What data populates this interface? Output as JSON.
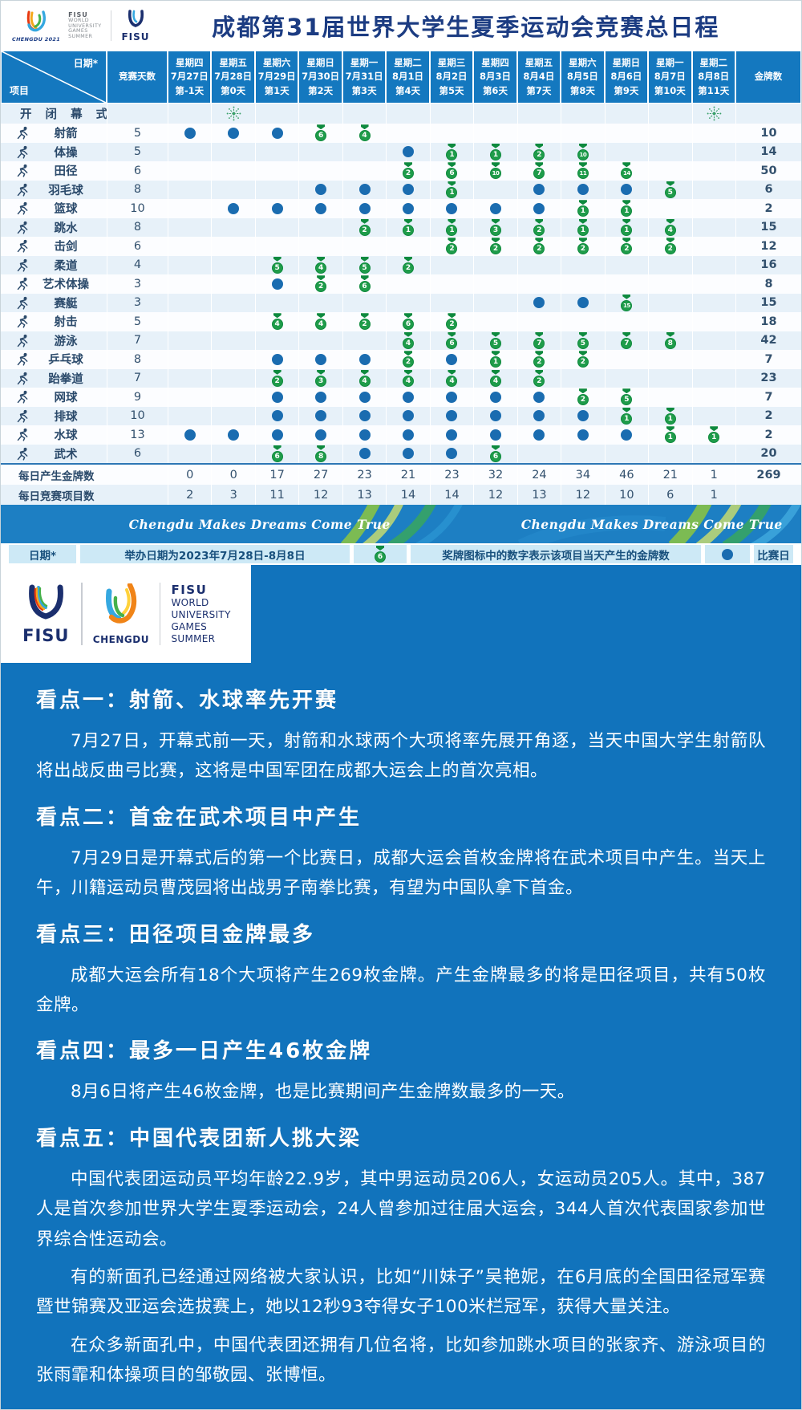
{
  "header": {
    "title": "成都第31届世界大学生夏季运动会竞赛总日程",
    "logo_chengdu2021": "CHENGDU 2021",
    "fisu_words": [
      "FISU",
      "WORLD",
      "UNIVERSITY",
      "GAMES",
      "SUMMER"
    ],
    "logo_fisu": "FISU"
  },
  "table": {
    "corner": {
      "top": "日期*",
      "bottom": "项目"
    },
    "days_label": "竞赛天数",
    "gold_label": "金牌数",
    "columns": [
      {
        "weekday": "星期四",
        "date": "7月27日",
        "day": "第-1天"
      },
      {
        "weekday": "星期五",
        "date": "7月28日",
        "day": "第0天"
      },
      {
        "weekday": "星期六",
        "date": "7月29日",
        "day": "第1天"
      },
      {
        "weekday": "星期日",
        "date": "7月30日",
        "day": "第2天"
      },
      {
        "weekday": "星期一",
        "date": "7月31日",
        "day": "第3天"
      },
      {
        "weekday": "星期二",
        "date": "8月1日",
        "day": "第4天"
      },
      {
        "weekday": "星期三",
        "date": "8月2日",
        "day": "第5天"
      },
      {
        "weekday": "星期四",
        "date": "8月3日",
        "day": "第6天"
      },
      {
        "weekday": "星期五",
        "date": "8月4日",
        "day": "第7天"
      },
      {
        "weekday": "星期六",
        "date": "8月5日",
        "day": "第8天"
      },
      {
        "weekday": "星期日",
        "date": "8月6日",
        "day": "第9天"
      },
      {
        "weekday": "星期一",
        "date": "8月7日",
        "day": "第10天"
      },
      {
        "weekday": "星期二",
        "date": "8月8日",
        "day": "第11天"
      }
    ],
    "ceremony": {
      "name": "开闭幕式",
      "fireworks_cols": [
        1,
        12
      ]
    },
    "sports": [
      {
        "key": "archery",
        "name": "射箭",
        "days": "5",
        "gold": "10",
        "cells": [
          "dot",
          "dot",
          "dot",
          "6",
          "4",
          "",
          "",
          "",
          "",
          "",
          "",
          "",
          ""
        ]
      },
      {
        "key": "gymnastics",
        "name": "体操",
        "days": "5",
        "gold": "14",
        "cells": [
          "",
          "",
          "",
          "",
          "",
          "dot",
          "1",
          "1",
          "2",
          "10",
          "",
          "",
          ""
        ]
      },
      {
        "key": "athletics",
        "name": "田径",
        "days": "6",
        "gold": "50",
        "cells": [
          "",
          "",
          "",
          "",
          "",
          "2",
          "6",
          "10",
          "7",
          "11",
          "14",
          "",
          ""
        ]
      },
      {
        "key": "badminton",
        "name": "羽毛球",
        "days": "8",
        "gold": "6",
        "cells": [
          "",
          "",
          "",
          "dot",
          "dot",
          "dot",
          "1",
          "",
          "dot",
          "dot",
          "dot",
          "5",
          ""
        ]
      },
      {
        "key": "basketball",
        "name": "篮球",
        "days": "10",
        "gold": "2",
        "cells": [
          "",
          "dot",
          "dot",
          "dot",
          "dot",
          "dot",
          "dot",
          "dot",
          "dot",
          "1",
          "1",
          "",
          ""
        ]
      },
      {
        "key": "diving",
        "name": "跳水",
        "days": "8",
        "gold": "15",
        "cells": [
          "",
          "",
          "",
          "",
          "2",
          "1",
          "1",
          "3",
          "2",
          "1",
          "1",
          "4",
          ""
        ]
      },
      {
        "key": "fencing",
        "name": "击剑",
        "days": "6",
        "gold": "12",
        "cells": [
          "",
          "",
          "",
          "",
          "",
          "",
          "2",
          "2",
          "2",
          "2",
          "2",
          "2",
          ""
        ]
      },
      {
        "key": "judo",
        "name": "柔道",
        "days": "4",
        "gold": "16",
        "cells": [
          "",
          "",
          "5",
          "4",
          "5",
          "2",
          "",
          "",
          "",
          "",
          "",
          "",
          ""
        ]
      },
      {
        "key": "rhythmic-gymnastics",
        "name": "艺术体操",
        "days": "3",
        "gold": "8",
        "cells": [
          "",
          "",
          "dot",
          "2",
          "6",
          "",
          "",
          "",
          "",
          "",
          "",
          "",
          ""
        ]
      },
      {
        "key": "rowing",
        "name": "赛艇",
        "days": "3",
        "gold": "15",
        "cells": [
          "",
          "",
          "",
          "",
          "",
          "",
          "",
          "",
          "dot",
          "dot",
          "15",
          "",
          ""
        ]
      },
      {
        "key": "shooting",
        "name": "射击",
        "days": "5",
        "gold": "18",
        "cells": [
          "",
          "",
          "4",
          "4",
          "2",
          "6",
          "2",
          "",
          "",
          "",
          "",
          "",
          ""
        ]
      },
      {
        "key": "swimming",
        "name": "游泳",
        "days": "7",
        "gold": "42",
        "cells": [
          "",
          "",
          "",
          "",
          "",
          "4",
          "6",
          "5",
          "7",
          "5",
          "7",
          "8",
          ""
        ]
      },
      {
        "key": "table-tennis",
        "name": "乒乓球",
        "days": "8",
        "gold": "7",
        "cells": [
          "",
          "",
          "dot",
          "dot",
          "dot",
          "2",
          "dot",
          "1",
          "2",
          "2",
          "",
          "",
          ""
        ]
      },
      {
        "key": "taekwondo",
        "name": "跆拳道",
        "days": "7",
        "gold": "23",
        "cells": [
          "",
          "",
          "2",
          "3",
          "4",
          "4",
          "4",
          "4",
          "2",
          "",
          "",
          "",
          ""
        ]
      },
      {
        "key": "tennis",
        "name": "网球",
        "days": "9",
        "gold": "7",
        "cells": [
          "",
          "",
          "dot",
          "dot",
          "dot",
          "dot",
          "dot",
          "dot",
          "dot",
          "2",
          "5",
          "",
          ""
        ]
      },
      {
        "key": "volleyball",
        "name": "排球",
        "days": "10",
        "gold": "2",
        "cells": [
          "",
          "",
          "dot",
          "dot",
          "dot",
          "dot",
          "dot",
          "dot",
          "dot",
          "dot",
          "1",
          "1",
          ""
        ]
      },
      {
        "key": "water-polo",
        "name": "水球",
        "days": "13",
        "gold": "2",
        "cells": [
          "dot",
          "dot",
          "dot",
          "dot",
          "dot",
          "dot",
          "dot",
          "dot",
          "dot",
          "dot",
          "dot",
          "1",
          "1"
        ]
      },
      {
        "key": "wushu",
        "name": "武术",
        "days": "6",
        "gold": "20",
        "cells": [
          "",
          "",
          "6",
          "8",
          "dot",
          "dot",
          "dot",
          "6",
          "",
          "",
          "",
          "",
          ""
        ]
      }
    ],
    "totals": [
      {
        "label": "每日产生金牌数",
        "values": [
          "0",
          "0",
          "17",
          "27",
          "23",
          "21",
          "23",
          "32",
          "24",
          "34",
          "46",
          "21",
          "1"
        ],
        "total": "269"
      },
      {
        "label": "每日竞赛项目数",
        "values": [
          "2",
          "3",
          "11",
          "12",
          "13",
          "14",
          "14",
          "12",
          "13",
          "12",
          "10",
          "6",
          "1"
        ],
        "total": ""
      }
    ]
  },
  "banner": {
    "slogan": "Chengdu Makes Dreams Come True"
  },
  "legend": {
    "date_label": "日期*",
    "date_note": "举办日期为2023年7月28日-8月8日",
    "medal_example": "6",
    "medal_note": "奖牌图标中的数字表示该项目当天产生的金牌数",
    "day_note": "比赛日"
  },
  "logos": {
    "fisu_label": "FISU",
    "chengdu_label": "CHENGDU",
    "words": [
      "FISU",
      "WORLD",
      "UNIVERSITY",
      "GAMES",
      "SUMMER"
    ]
  },
  "highlights": [
    {
      "heading": "看点一：射箭、水球率先开赛",
      "paragraphs": [
        "7月27日，开幕式前一天，射箭和水球两个大项将率先展开角逐，当天中国大学生射箭队将出战反曲弓比赛，这将是中国军团在成都大运会上的首次亮相。"
      ]
    },
    {
      "heading": "看点二：首金在武术项目中产生",
      "paragraphs": [
        "7月29日是开幕式后的第一个比赛日，成都大运会首枚金牌将在武术项目中产生。当天上午，川籍运动员曹茂园将出战男子南拳比赛，有望为中国队拿下首金。"
      ]
    },
    {
      "heading": "看点三：田径项目金牌最多",
      "paragraphs": [
        "成都大运会所有18个大项将产生269枚金牌。产生金牌最多的将是田径项目，共有50枚金牌。"
      ]
    },
    {
      "heading": "看点四：最多一日产生46枚金牌",
      "paragraphs": [
        "8月6日将产生46枚金牌，也是比赛期间产生金牌数最多的一天。"
      ]
    },
    {
      "heading": "看点五：中国代表团新人挑大梁",
      "paragraphs": [
        "中国代表团运动员平均年龄22.9岁，其中男运动员206人，女运动员205人。其中，387人是首次参加世界大学生夏季运动会，24人曾参加过往届大运会，344人首次代表国家参加世界综合性运动会。",
        "有的新面孔已经通过网络被大家认识，比如“川妹子”吴艳妮，在6月底的全国田径冠军赛暨世锦赛及亚运会选拔赛上，她以12秒93夺得女子100米栏冠军，获得大量关注。",
        "在众多新面孔中，中国代表团还拥有几位名将，比如参加跳水项目的张家齐、游泳项目的张雨霏和体操项目的邹敬园、张博恒。"
      ]
    }
  ],
  "colors": {
    "header_blue": "#1478bf",
    "dot_blue": "#1a6cb0",
    "medal_green": "#1f9c4a",
    "content_blue": "#1173bc",
    "navy": "#1b3c85",
    "banner_blue": "#1d7fc3"
  }
}
